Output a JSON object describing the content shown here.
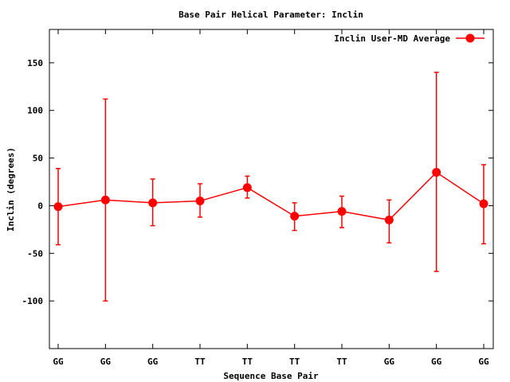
{
  "chart_data": {
    "type": "line",
    "title": "Base Pair Helical Parameter: Inclin",
    "xlabel": "Sequence Base Pair",
    "ylabel": "Inclin (degrees)",
    "ylim": [
      -150,
      185
    ],
    "yticks": [
      -100,
      -50,
      0,
      50,
      100,
      150
    ],
    "categories": [
      "GG",
      "GG",
      "GG",
      "TT",
      "TT",
      "TT",
      "TT",
      "GG",
      "GG",
      "GG"
    ],
    "legend_position": "top-right",
    "grid": false,
    "series": [
      {
        "name": "Inclin User-MD Average",
        "color": "#ff0000",
        "values": [
          -1,
          6,
          3,
          5,
          19,
          -11,
          -6,
          -15,
          35,
          2
        ],
        "error_low": [
          -41,
          -100,
          -21,
          -12,
          8,
          -26,
          -23,
          -39,
          -69,
          -40
        ],
        "error_high": [
          39,
          112,
          28,
          23,
          31,
          3,
          10,
          6,
          140,
          43
        ]
      }
    ]
  }
}
